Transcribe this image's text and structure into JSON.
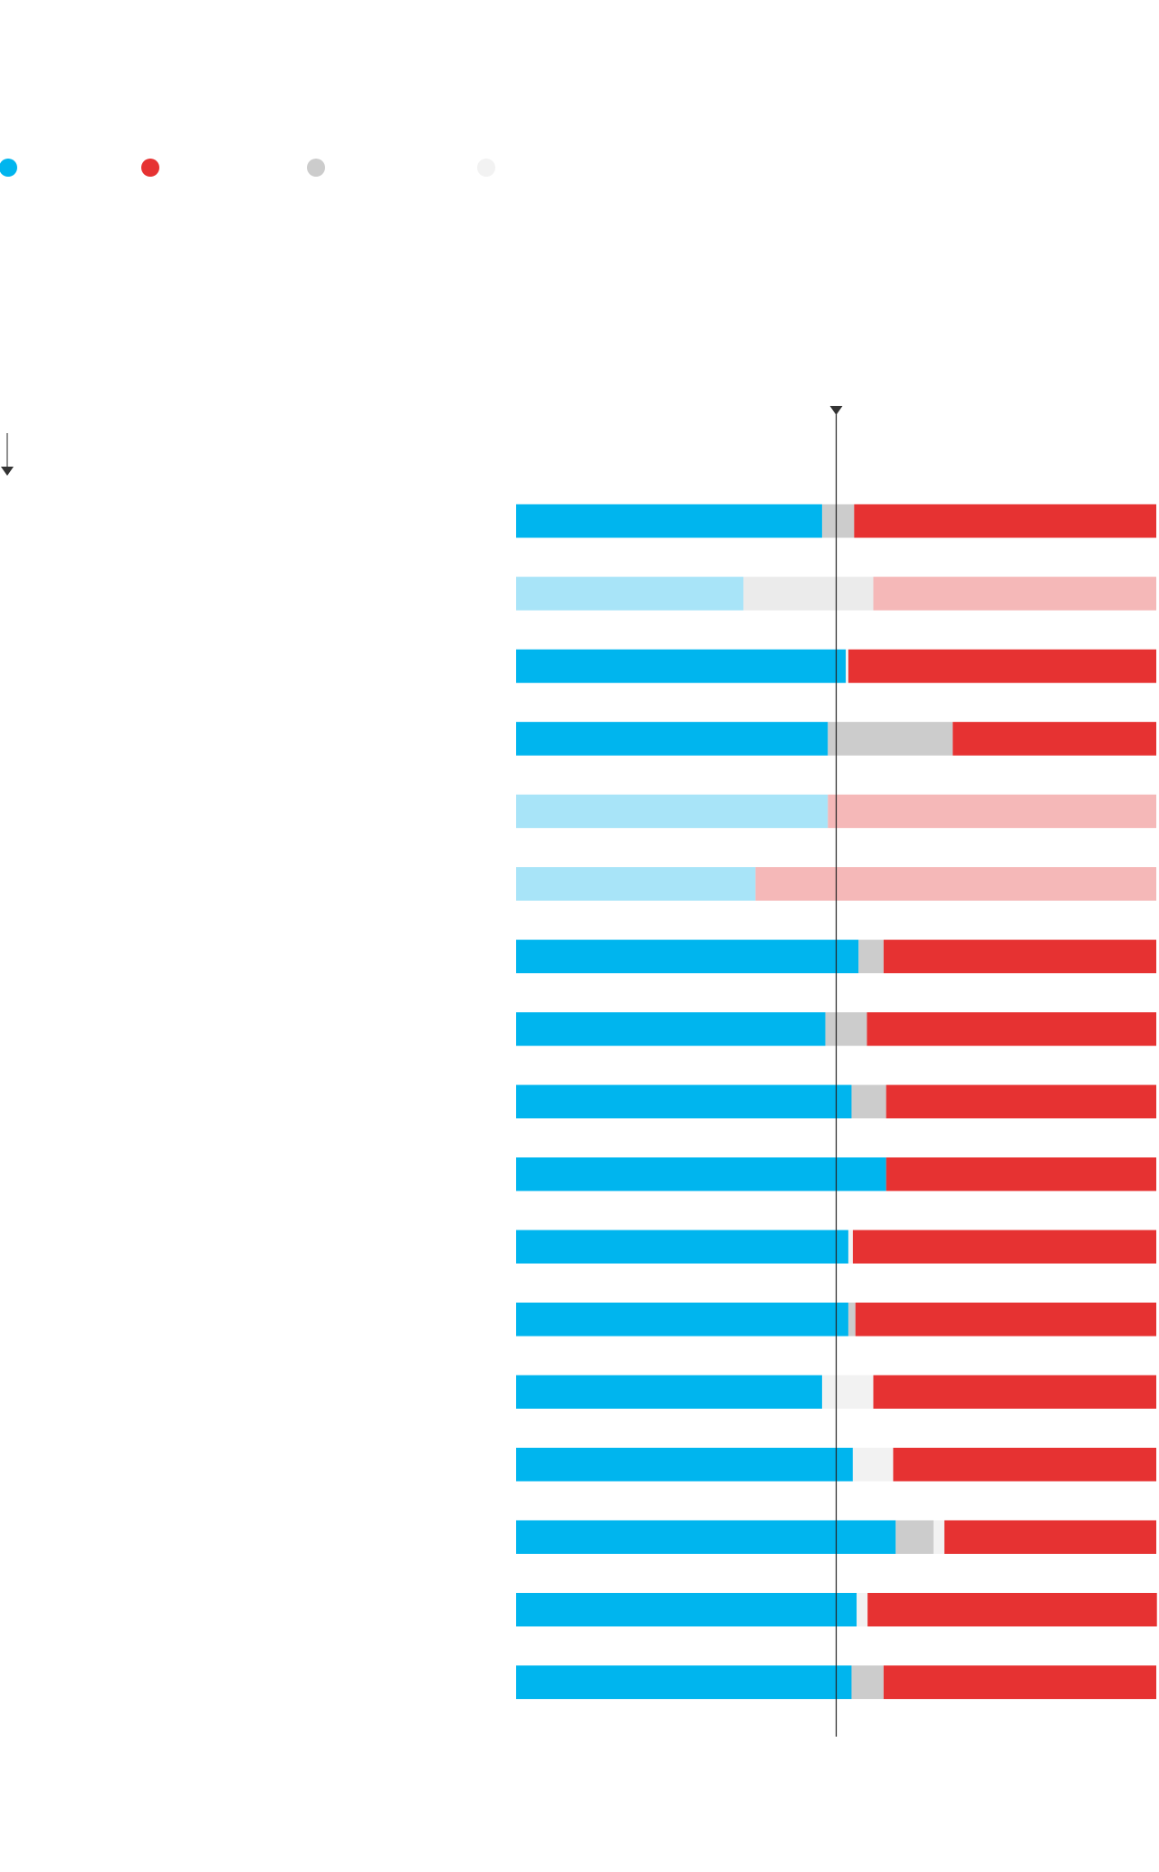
{
  "chart_data": {
    "type": "stacked-bar-100",
    "xlim": [
      0,
      100
    ],
    "reference_value": 50,
    "faded": [
      false,
      true,
      false,
      false,
      true,
      true,
      false,
      false,
      false,
      false,
      false,
      false,
      false,
      false,
      false,
      false,
      false
    ],
    "series": [
      {
        "color": "#00b5ee",
        "faded_color": "#a8e4f8",
        "values": [
          47.8,
          35.5,
          51.5,
          48.7,
          48.7,
          37.4,
          53.5,
          48.3,
          52.4,
          57.8,
          51.9,
          51.9,
          47.8,
          52.6,
          59.3,
          53.2,
          52.4
        ]
      },
      {
        "color": "#e63232",
        "faded_color": "#f5b8b8",
        "values": [
          47.2,
          44.2,
          48.1,
          31.8,
          51.3,
          62.6,
          42.6,
          45.2,
          42.2,
          42.2,
          47.4,
          47.0,
          44.2,
          41.1,
          33.1,
          45.2,
          42.6
        ]
      },
      {
        "color": "#cccccc",
        "faded_color": "#ebebeb",
        "values": [
          5.0,
          20.3,
          0,
          19.5,
          0,
          0,
          3.9,
          6.5,
          5.4,
          0,
          0,
          1.1,
          0,
          0,
          5.9,
          0,
          5.0
        ]
      },
      {
        "color": "#f2f2f2",
        "faded_color": "#f7f7f7",
        "values": [
          0,
          0,
          0.4,
          0,
          0,
          0,
          0,
          0,
          0,
          0,
          0.7,
          0,
          8.0,
          6.3,
          1.7,
          1.7,
          0
        ]
      }
    ]
  }
}
